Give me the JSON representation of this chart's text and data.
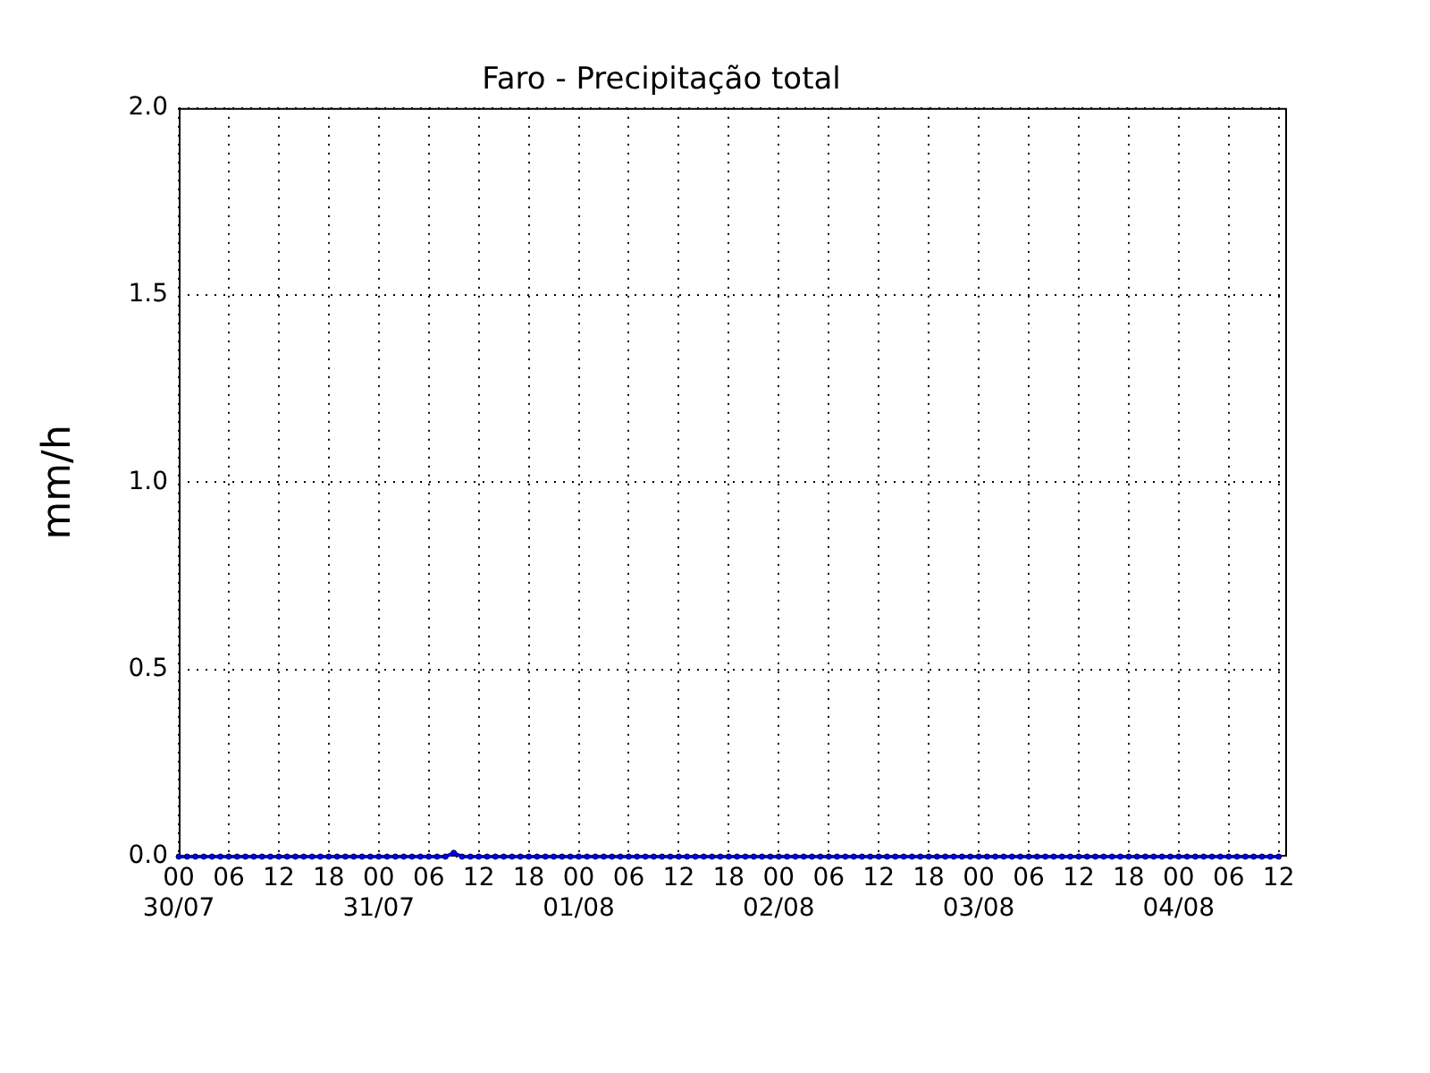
{
  "chart_data": {
    "type": "line",
    "title": "Faro - Precipitação total",
    "ylabel": "mm/h",
    "x": [
      "--07-30T00:00",
      "--07-30T01:00",
      "--07-30T02:00",
      "--07-30T03:00",
      "--07-30T04:00",
      "--07-30T05:00",
      "--07-30T06:00",
      "--07-30T07:00",
      "--07-30T08:00",
      "--07-30T09:00",
      "--07-30T10:00",
      "--07-30T11:00",
      "--07-30T12:00",
      "--07-30T13:00",
      "--07-30T14:00",
      "--07-30T15:00",
      "--07-30T16:00",
      "--07-30T17:00",
      "--07-30T18:00",
      "--07-30T19:00",
      "--07-30T20:00",
      "--07-30T21:00",
      "--07-30T22:00",
      "--07-30T23:00",
      "--07-31T00:00",
      "--07-31T01:00",
      "--07-31T02:00",
      "--07-31T03:00",
      "--07-31T04:00",
      "--07-31T05:00",
      "--07-31T06:00",
      "--07-31T07:00",
      "--07-31T08:00",
      "--07-31T09:00",
      "--07-31T10:00",
      "--07-31T11:00",
      "--07-31T12:00",
      "--07-31T13:00",
      "--07-31T14:00",
      "--07-31T15:00",
      "--07-31T16:00",
      "--07-31T17:00",
      "--07-31T18:00",
      "--07-31T19:00",
      "--07-31T20:00",
      "--07-31T21:00",
      "--07-31T22:00",
      "--07-31T23:00",
      "--08-01T00:00",
      "--08-01T01:00",
      "--08-01T02:00",
      "--08-01T03:00",
      "--08-01T04:00",
      "--08-01T05:00",
      "--08-01T06:00",
      "--08-01T07:00",
      "--08-01T08:00",
      "--08-01T09:00",
      "--08-01T10:00",
      "--08-01T11:00",
      "--08-01T12:00",
      "--08-01T13:00",
      "--08-01T14:00",
      "--08-01T15:00",
      "--08-01T16:00",
      "--08-01T17:00",
      "--08-01T18:00",
      "--08-01T19:00",
      "--08-01T20:00",
      "--08-01T21:00",
      "--08-01T22:00",
      "--08-01T23:00",
      "--08-02T00:00",
      "--08-02T01:00",
      "--08-02T02:00",
      "--08-02T03:00",
      "--08-02T04:00",
      "--08-02T05:00",
      "--08-02T06:00",
      "--08-02T07:00",
      "--08-02T08:00",
      "--08-02T09:00",
      "--08-02T10:00",
      "--08-02T11:00",
      "--08-02T12:00",
      "--08-02T13:00",
      "--08-02T14:00",
      "--08-02T15:00",
      "--08-02T16:00",
      "--08-02T17:00",
      "--08-02T18:00",
      "--08-02T19:00",
      "--08-02T20:00",
      "--08-02T21:00",
      "--08-02T22:00",
      "--08-02T23:00",
      "--08-03T00:00",
      "--08-03T01:00",
      "--08-03T02:00",
      "--08-03T03:00",
      "--08-03T04:00",
      "--08-03T05:00",
      "--08-03T06:00",
      "--08-03T07:00",
      "--08-03T08:00",
      "--08-03T09:00",
      "--08-03T10:00",
      "--08-03T11:00",
      "--08-03T12:00",
      "--08-03T13:00",
      "--08-03T14:00",
      "--08-03T15:00",
      "--08-03T16:00",
      "--08-03T17:00",
      "--08-03T18:00",
      "--08-03T19:00",
      "--08-03T20:00",
      "--08-03T21:00",
      "--08-03T22:00",
      "--08-03T23:00",
      "--08-04T00:00",
      "--08-04T01:00",
      "--08-04T02:00",
      "--08-04T03:00",
      "--08-04T04:00",
      "--08-04T05:00",
      "--08-04T06:00",
      "--08-04T07:00",
      "--08-04T08:00",
      "--08-04T09:00",
      "--08-04T10:00",
      "--08-04T11:00",
      "--08-04T12:00"
    ],
    "series": [
      {
        "color": "#0000ff",
        "values": [
          0,
          0,
          0,
          0,
          0,
          0,
          0,
          0,
          0,
          0,
          0,
          0,
          0,
          0,
          0,
          0,
          0,
          0,
          0,
          0,
          0,
          0,
          0,
          0,
          0,
          0,
          0,
          0,
          0,
          0,
          0,
          0,
          0,
          0.01,
          0,
          0,
          0,
          0,
          0,
          0,
          0,
          0,
          0,
          0,
          0,
          0,
          0,
          0,
          0,
          0,
          0,
          0,
          0,
          0,
          0,
          0,
          0,
          0,
          0,
          0,
          0,
          0,
          0,
          0,
          0,
          0,
          0,
          0,
          0,
          0,
          0,
          0,
          0,
          0,
          0,
          0,
          0,
          0,
          0,
          0,
          0,
          0,
          0,
          0,
          0,
          0,
          0,
          0,
          0,
          0,
          0,
          0,
          0,
          0,
          0,
          0,
          0,
          0,
          0,
          0,
          0,
          0,
          0,
          0,
          0,
          0,
          0,
          0,
          0,
          0,
          0,
          0,
          0,
          0,
          0,
          0,
          0,
          0,
          0,
          0,
          0,
          0,
          0,
          0,
          0,
          0,
          0,
          0,
          0,
          0,
          0,
          0,
          0
        ]
      }
    ],
    "xlim": [
      "--07-30T00:00",
      "--08-04T13:00"
    ],
    "xticks": [
      {
        "value": "--07-30T00:00",
        "label": "00\n30/07"
      },
      {
        "value": "--07-30T06:00",
        "label": "06"
      },
      {
        "value": "--07-30T12:00",
        "label": "12"
      },
      {
        "value": "--07-30T18:00",
        "label": "18"
      },
      {
        "value": "--07-31T00:00",
        "label": "00\n31/07"
      },
      {
        "value": "--07-31T06:00",
        "label": "06"
      },
      {
        "value": "--07-31T12:00",
        "label": "12"
      },
      {
        "value": "--07-31T18:00",
        "label": "18"
      },
      {
        "value": "--08-01T00:00",
        "label": "00\n01/08"
      },
      {
        "value": "--08-01T06:00",
        "label": "06"
      },
      {
        "value": "--08-01T12:00",
        "label": "12"
      },
      {
        "value": "--08-01T18:00",
        "label": "18"
      },
      {
        "value": "--08-02T00:00",
        "label": "00\n02/08"
      },
      {
        "value": "--08-02T06:00",
        "label": "06"
      },
      {
        "value": "--08-02T12:00",
        "label": "12"
      },
      {
        "value": "--08-02T18:00",
        "label": "18"
      },
      {
        "value": "--08-03T00:00",
        "label": "00\n03/08"
      },
      {
        "value": "--08-03T06:00",
        "label": "06"
      },
      {
        "value": "--08-03T12:00",
        "label": "12"
      },
      {
        "value": "--08-03T18:00",
        "label": "18"
      },
      {
        "value": "--08-04T00:00",
        "label": "00\n04/08"
      },
      {
        "value": "--08-04T06:00",
        "label": "06"
      },
      {
        "value": "--08-04T12:00",
        "label": "12"
      }
    ],
    "ylim": [
      0,
      2
    ],
    "yticks": [
      {
        "value": 0,
        "label": "0.0"
      },
      {
        "value": 0.5,
        "label": "0.5"
      },
      {
        "value": 1,
        "label": "1.0"
      },
      {
        "value": 1.5,
        "label": "1.5"
      },
      {
        "value": 2,
        "label": "2.0"
      }
    ],
    "grid": true,
    "legend": false,
    "marker": "circle"
  }
}
